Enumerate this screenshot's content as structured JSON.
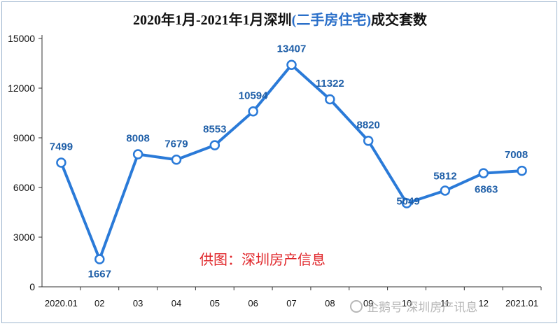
{
  "chart_data": {
    "type": "line",
    "title_prefix": "2020年1月-2021年1月深圳",
    "title_highlight": "(二手房住宅)",
    "title_suffix": "成交套数",
    "categories": [
      "2020.01",
      "02",
      "03",
      "04",
      "05",
      "06",
      "07",
      "08",
      "09",
      "10",
      "11",
      "12",
      "2021.01"
    ],
    "values": [
      7499,
      1667,
      8008,
      7679,
      8553,
      10594,
      13407,
      11322,
      8820,
      5049,
      5812,
      6863,
      7008
    ],
    "ylim": [
      0,
      15000
    ],
    "yticks": [
      0,
      3000,
      6000,
      9000,
      12000,
      15000
    ],
    "grid": false,
    "line_color": "#2a7ad8",
    "label_color": "#1f5fa8"
  },
  "credit": "供图：深圳房产信息",
  "watermark": "企鹅号 深圳房产讯息"
}
